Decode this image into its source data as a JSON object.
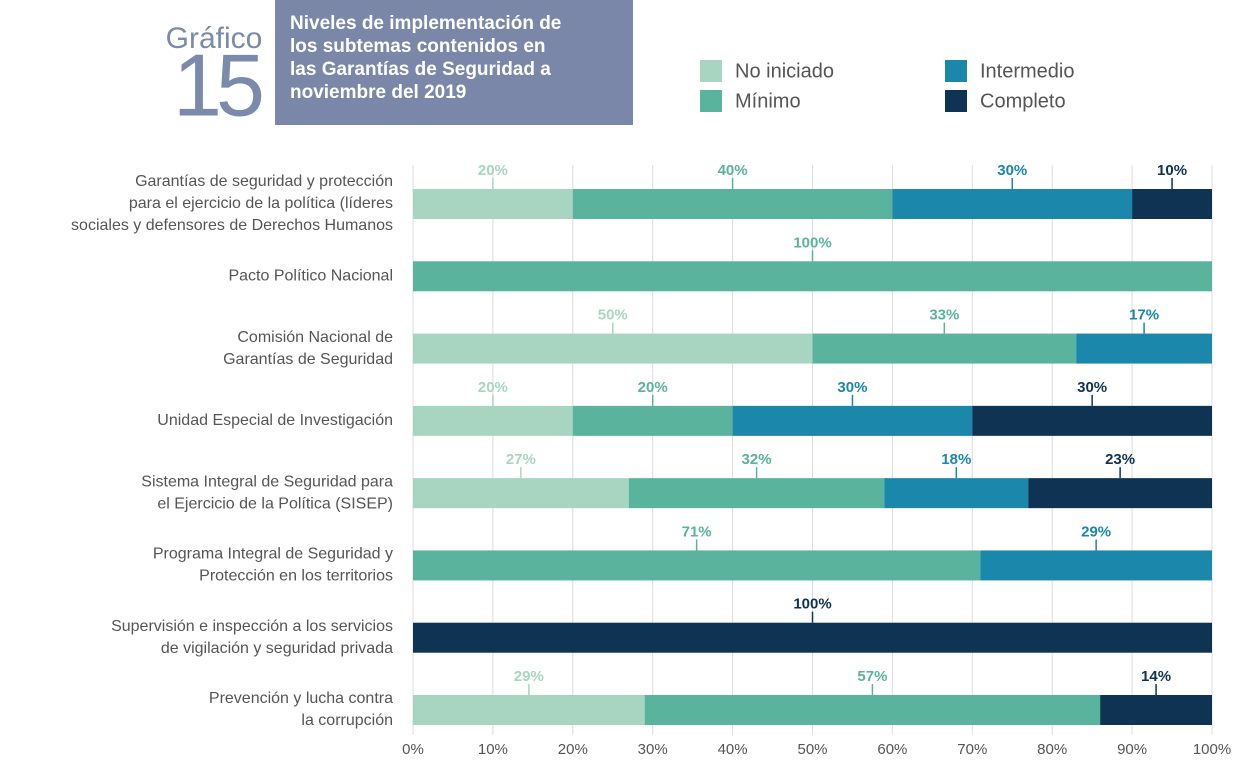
{
  "chart_data": {
    "type": "stacked-bar-horizontal",
    "label": "Gráfico",
    "number": "15",
    "title": [
      "Niveles de implementación de",
      "los subtemas contenidos en",
      "las Garantías de Seguridad a",
      "noviembre del 2019"
    ],
    "categories": [
      [
        "Garantías de seguridad y protección",
        "para el ejercicio de la política (líderes",
        "sociales y defensores de Derechos Humanos"
      ],
      [
        "Pacto Político Nacional"
      ],
      [
        "Comisión Nacional de",
        "Garantías de Seguridad"
      ],
      [
        "Unidad Especial de Investigación"
      ],
      [
        "Sistema Integral de Seguridad para",
        "el Ejercicio de la Política (SISEP)"
      ],
      [
        "Programa Integral de Seguridad y",
        "Protección en los territorios"
      ],
      [
        "Supervisión e inspección a los servicios",
        "de vigilación y seguridad privada"
      ],
      [
        "Prevención y lucha contra",
        "la corrupción"
      ]
    ],
    "series": [
      {
        "name": "No iniciado",
        "color": "#a8d5c2",
        "values": [
          20,
          null,
          50,
          20,
          27,
          null,
          null,
          29
        ],
        "value_labels": [
          "20%",
          null,
          "50%",
          "20%",
          "27%",
          null,
          null,
          "29%"
        ]
      },
      {
        "name": "Mínimo",
        "color": "#5ab39c",
        "values": [
          40,
          100,
          33,
          20,
          32,
          71,
          null,
          57
        ],
        "value_labels": [
          "40%",
          "100%",
          "33%",
          "20%",
          "32%",
          "71%",
          null,
          "57%"
        ]
      },
      {
        "name": "Intermedio",
        "color": "#1a87ab",
        "values": [
          30,
          null,
          17,
          30,
          18,
          29,
          null,
          null
        ],
        "value_labels": [
          "30%",
          null,
          "17%",
          "30%",
          "18%",
          "29%",
          null,
          null
        ]
      },
      {
        "name": "Completo",
        "color": "#0f3352",
        "values": [
          10,
          null,
          null,
          30,
          23,
          null,
          100,
          14
        ],
        "value_labels": [
          "10%",
          null,
          null,
          "30%",
          "23%",
          null,
          "100%",
          "14%"
        ]
      }
    ],
    "xlim": [
      0,
      100
    ],
    "xticks": [
      {
        "value": 0,
        "label": "0%"
      },
      {
        "value": 10,
        "label": "10%"
      },
      {
        "value": 20,
        "label": "20%"
      },
      {
        "value": 30,
        "label": "30%"
      },
      {
        "value": 40,
        "label": "40%"
      },
      {
        "value": 50,
        "label": "50%"
      },
      {
        "value": 60,
        "label": "60%"
      },
      {
        "value": 70,
        "label": "70%"
      },
      {
        "value": 80,
        "label": "80%"
      },
      {
        "value": 90,
        "label": "90%"
      },
      {
        "value": 100,
        "label": "100%"
      }
    ],
    "grid": true
  }
}
